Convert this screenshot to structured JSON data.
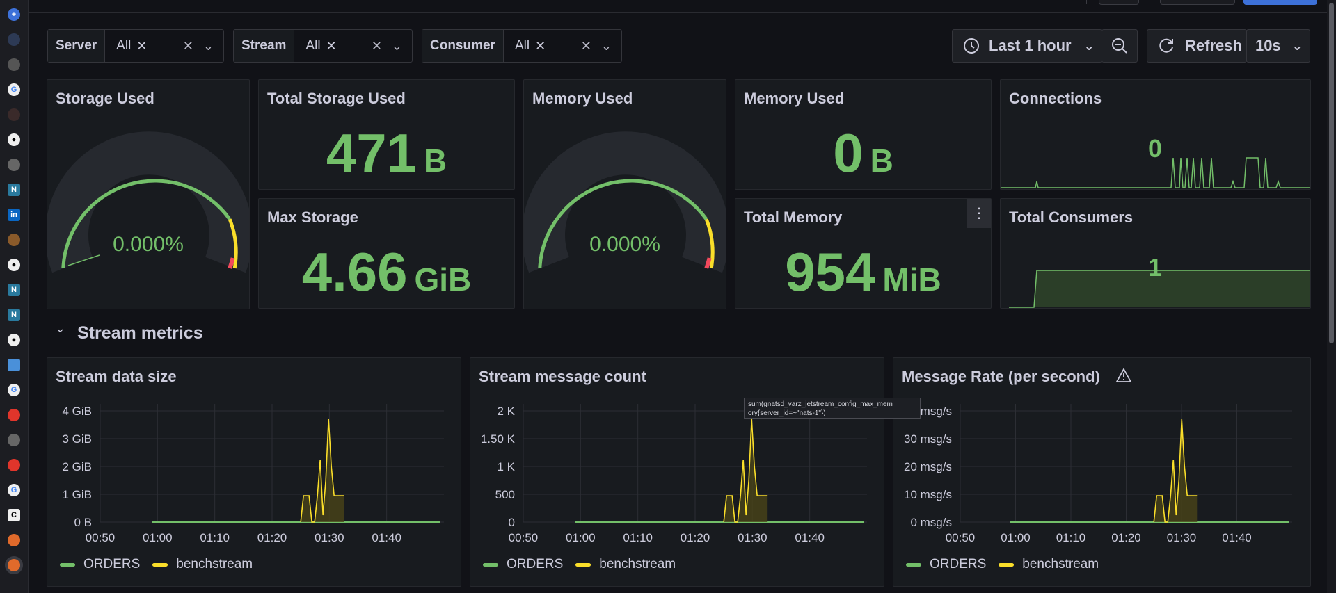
{
  "variables": [
    {
      "label": "Server",
      "value": "All"
    },
    {
      "label": "Stream",
      "value": "All"
    },
    {
      "label": "Consumer",
      "value": "All"
    }
  ],
  "time_range": {
    "label": "Last 1 hour"
  },
  "refresh": {
    "label": "Refresh",
    "interval": "10s"
  },
  "panels": {
    "storage_used": {
      "title": "Storage Used",
      "value": "0.000%",
      "gauge_fraction": 0.0
    },
    "total_storage_used": {
      "title": "Total Storage Used",
      "value": "471",
      "unit": "B"
    },
    "max_storage": {
      "title": "Max Storage",
      "value": "4.66",
      "unit": "GiB"
    },
    "memory_used_gauge": {
      "title": "Memory Used",
      "value": "0.000%",
      "gauge_fraction": 0.0
    },
    "memory_used_stat": {
      "title": "Memory Used",
      "value": "0",
      "unit": "B"
    },
    "total_memory": {
      "title": "Total Memory",
      "value": "954",
      "unit": "MiB"
    },
    "connections": {
      "title": "Connections",
      "value": "0"
    },
    "total_consumers": {
      "title": "Total Consumers",
      "value": "1"
    }
  },
  "row": {
    "title": "Stream metrics"
  },
  "graphs": [
    {
      "title": "Stream data size",
      "yticks": [
        "4 GiB",
        "3 GiB",
        "2 GiB",
        "1 GiB",
        "0 B"
      ]
    },
    {
      "title": "Stream message count",
      "yticks": [
        "2 K",
        "1.50 K",
        "1 K",
        "500",
        "0"
      ]
    },
    {
      "title": "Message Rate (per second)",
      "yticks": [
        "msg/s",
        "30 msg/s",
        "20 msg/s",
        "10 msg/s",
        "0 msg/s"
      ]
    }
  ],
  "xticks": [
    "00:50",
    "01:00",
    "01:10",
    "01:20",
    "01:30",
    "01:40"
  ],
  "legend": [
    "ORDERS",
    "benchstream"
  ],
  "tooltip": {
    "line1": "sum(gnatsd_varz_jetstream_config_max_mem",
    "line2": "ory{server_id=~\"nats-1\"})"
  },
  "colors": {
    "green": "#73bf69",
    "yellow": "#fade2a",
    "red": "#f2495c",
    "background": "#111217",
    "panel": "#181b1f"
  },
  "icons": [
    "plus-icon",
    "clock-icon",
    "zoom-out-icon",
    "refresh-icon",
    "chevron-down-icon",
    "close-icon",
    "warning-icon",
    "kebab-menu-icon"
  ]
}
